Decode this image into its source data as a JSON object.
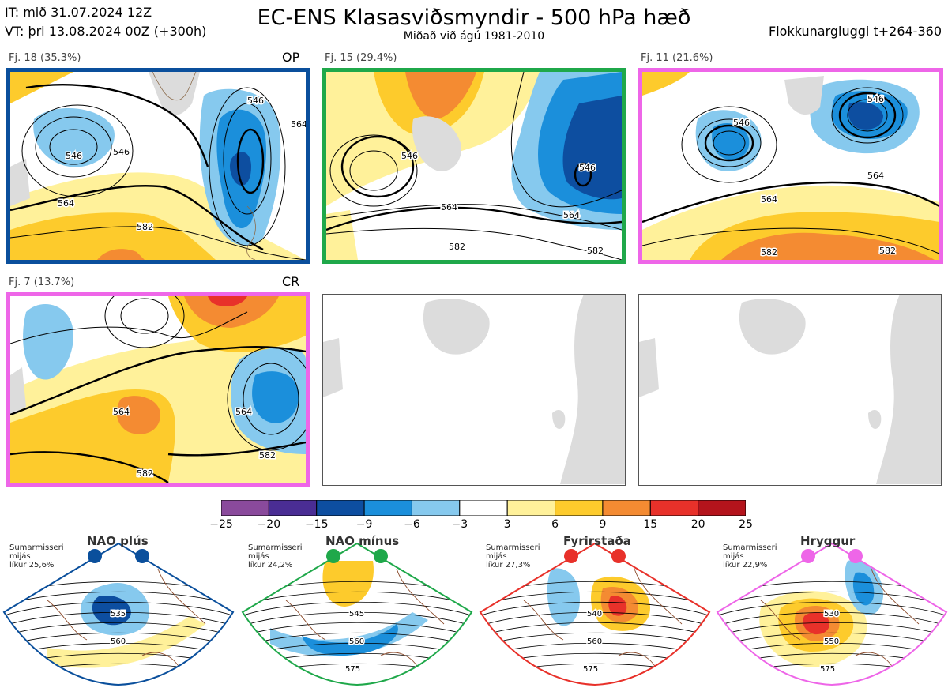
{
  "header": {
    "it_line": "IT: mið 31.07.2024 12Z",
    "vt_line": "VT: þri 13.08.2024 00Z  (+300h)",
    "title": "EC-ENS Klasasviðsmyndir - 500 hPa hæð",
    "subtitle": "Miðað við ágú 1981-2010",
    "window": "Flokkunargluggi t+264-360"
  },
  "panels": [
    {
      "label": "Fj. 18 (35.3%)",
      "tag": "OP",
      "border": "#0a4f9c",
      "contours": [
        "546",
        "546",
        "564",
        "564",
        "582",
        "546"
      ]
    },
    {
      "label": "Fj. 15 (29.4%)",
      "tag": "",
      "border": "#1fa84a",
      "contours": [
        "546",
        "546",
        "564",
        "564",
        "582",
        "582"
      ]
    },
    {
      "label": "Fj. 11 (21.6%)",
      "tag": "",
      "border": "#ee66e8",
      "contours": [
        "546",
        "546",
        "564",
        "564",
        "582",
        "582"
      ]
    },
    {
      "label": "Fj. 7 (13.7%)",
      "tag": "CR",
      "border": "#ee66e8",
      "contours": [
        "564",
        "564",
        "582",
        "582"
      ]
    }
  ],
  "colorbar": {
    "ticks": [
      "−25",
      "−20",
      "−15",
      "−9",
      "−6",
      "−3",
      "3",
      "6",
      "9",
      "15",
      "20",
      "25"
    ],
    "colors": [
      "#8a4a9c",
      "#4a2d94",
      "#0d4ea0",
      "#1b8fdb",
      "#86c9ee",
      "#ffffff",
      "#fff19a",
      "#fdcb2c",
      "#f48b32",
      "#e8312a",
      "#b4141c"
    ]
  },
  "regimes": [
    {
      "name": "NAO plús",
      "note": "Sumarmisseri\nmijás\nlíkur 25,6%",
      "color": "#0a4f9c",
      "contours": [
        "535",
        "560"
      ]
    },
    {
      "name": "NAO mínus",
      "note": "Sumarmisseri\nmijás\nlíkur 24,2%",
      "color": "#1fa84a",
      "contours": [
        "545",
        "560",
        "575"
      ]
    },
    {
      "name": "Fyrirstaða",
      "note": "Sumarmisseri\nmijás\nlíkur 27,3%",
      "color": "#e8312a",
      "contours": [
        "540",
        "560",
        "575"
      ]
    },
    {
      "name": "Hryggur",
      "note": "Sumarmisseri\nmijás\nlíkur 22,9%",
      "color": "#ee66e8",
      "contours": [
        "530",
        "550",
        "575"
      ]
    }
  ]
}
